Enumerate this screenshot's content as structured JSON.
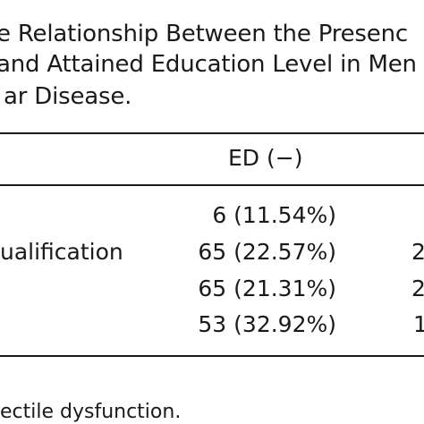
{
  "caption": {
    "lines": [
      "e Relationship Between the Presenc",
      "and Attained Education Level in Men",
      "ar Disease."
    ]
  },
  "table": {
    "header": {
      "col_ed_negative": "ED (−)"
    },
    "rows": [
      {
        "label": "",
        "ed_negative": "6 (11.54%)",
        "next_col": ""
      },
      {
        "label": "ualification",
        "ed_negative": "65 (22.57%)",
        "next_col": "2"
      },
      {
        "label": "",
        "ed_negative": "65 (21.31%)",
        "next_col": "2"
      },
      {
        "label": "",
        "ed_negative": "53 (32.92%)",
        "next_col": "1"
      }
    ]
  },
  "footnote": "ectile dysfunction."
}
